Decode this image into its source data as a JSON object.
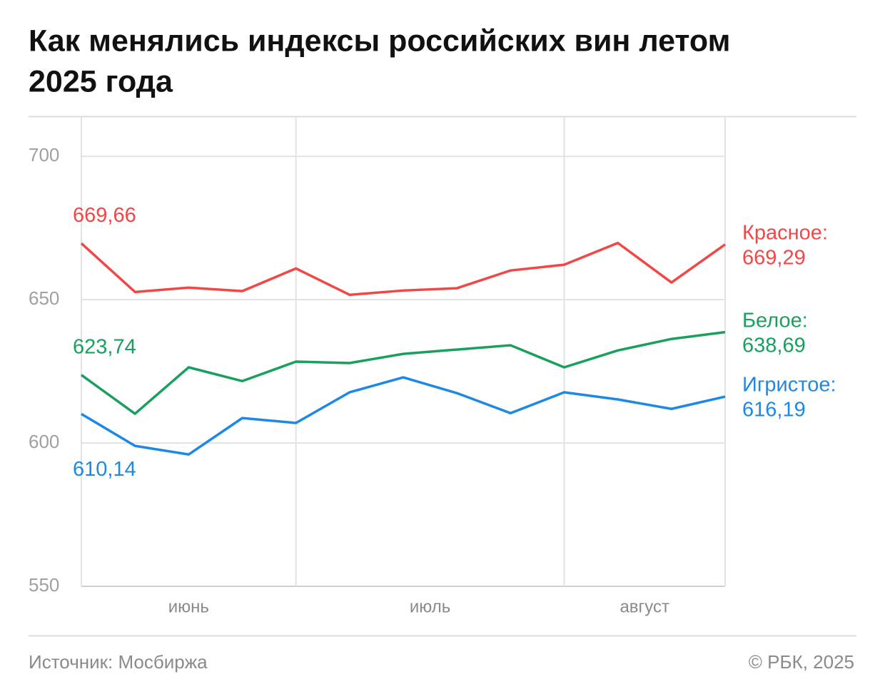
{
  "chart_data": {
    "type": "line",
    "title": [
      "Как менялись индексы российских вин летом",
      "2025 года"
    ],
    "source": "Источник: Мосбиржа",
    "credit": "© РБК, 2025",
    "categories": [
      null,
      null,
      null,
      null,
      null,
      null,
      null,
      null,
      null,
      null,
      null,
      null,
      null
    ],
    "xgroups": [
      {
        "label": "июнь",
        "span": [
          0,
          4
        ]
      },
      {
        "label": "июль",
        "span": [
          4,
          9
        ]
      },
      {
        "label": "август",
        "span": [
          9,
          12
        ]
      }
    ],
    "ylim": [
      550,
      714
    ],
    "yticks": [
      550,
      600,
      650,
      700
    ],
    "grid": true,
    "series": [
      {
        "name": "Красное:",
        "color": "#f04747",
        "values": [
          669.66,
          652.7,
          654.2,
          653.0,
          660.9,
          651.7,
          653.2,
          654.0,
          660.2,
          662.2,
          669.8,
          656.0,
          669.29
        ],
        "value_labels": [
          "669,66",
          null,
          null,
          null,
          null,
          null,
          null,
          null,
          null,
          null,
          null,
          null,
          "669,29"
        ]
      },
      {
        "name": "Белое:",
        "color": "#1a9f5f",
        "values": [
          623.74,
          610.2,
          626.4,
          621.6,
          628.4,
          627.9,
          631.1,
          632.6,
          634.1,
          626.4,
          632.3,
          636.3,
          638.69
        ],
        "value_labels": [
          "623,74",
          null,
          null,
          null,
          null,
          null,
          null,
          null,
          null,
          null,
          null,
          null,
          "638,69"
        ]
      },
      {
        "name": "Игристое:",
        "color": "#1e88e5",
        "values": [
          610.14,
          599.0,
          596.0,
          608.7,
          607.0,
          617.7,
          622.9,
          617.4,
          610.4,
          617.7,
          615.2,
          611.9,
          616.19
        ],
        "value_labels": [
          "610,14",
          null,
          null,
          null,
          null,
          null,
          null,
          null,
          null,
          null,
          null,
          null,
          "616,19"
        ]
      }
    ]
  }
}
